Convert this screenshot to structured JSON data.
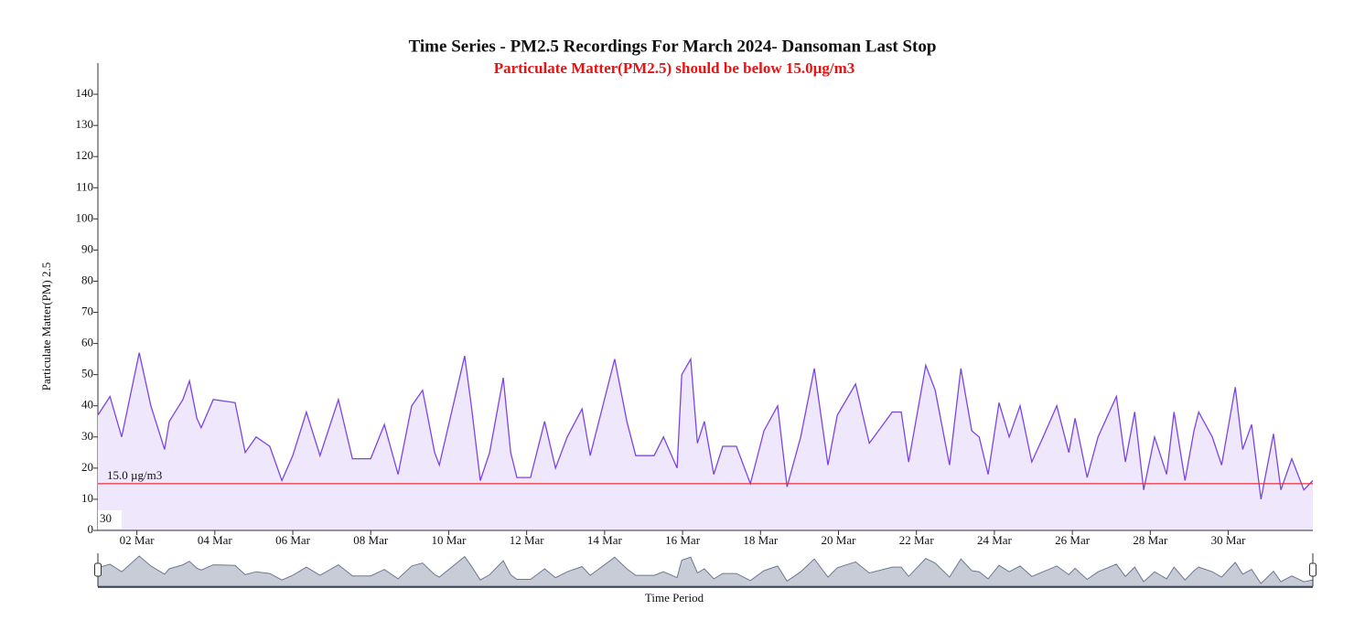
{
  "chart_data": {
    "type": "area",
    "title": "Time Series - PM2.5 Recordings For March 2024- Dansoman Last Stop",
    "subtitle": "Particulate Matter(PM2.5) should be below 15.0µg/m3",
    "y_label": "Particulate Matter(PM) 2.5",
    "x_label": "Time Period",
    "annotation": "30",
    "threshold": {
      "value": 15,
      "label": "15.0 µg/m3",
      "color": "#e8303c"
    },
    "xlim": [
      1,
      32.17
    ],
    "ylim": [
      0,
      150
    ],
    "yticks": [
      0,
      10,
      20,
      30,
      40,
      50,
      60,
      70,
      80,
      90,
      100,
      110,
      120,
      130,
      140
    ],
    "xticks": [
      {
        "value": 2,
        "label": "02 Mar"
      },
      {
        "value": 4,
        "label": "04 Mar"
      },
      {
        "value": 6,
        "label": "06 Mar"
      },
      {
        "value": 8,
        "label": "08 Mar"
      },
      {
        "value": 10,
        "label": "10 Mar"
      },
      {
        "value": 12,
        "label": "12 Mar"
      },
      {
        "value": 14,
        "label": "14 Mar"
      },
      {
        "value": 16,
        "label": "16 Mar"
      },
      {
        "value": 18,
        "label": "18 Mar"
      },
      {
        "value": 20,
        "label": "20 Mar"
      },
      {
        "value": 22,
        "label": "22 Mar"
      },
      {
        "value": 24,
        "label": "24 Mar"
      },
      {
        "value": 26,
        "label": "26 Mar"
      },
      {
        "value": 28,
        "label": "28 Mar"
      },
      {
        "value": 30,
        "label": "30 Mar"
      }
    ],
    "x": [
      1.0,
      1.31,
      1.61,
      2.06,
      2.36,
      2.71,
      2.83,
      3.18,
      3.35,
      3.54,
      3.65,
      3.96,
      4.52,
      4.78,
      5.06,
      5.41,
      5.72,
      6.0,
      6.35,
      6.7,
      7.17,
      7.53,
      8.0,
      8.35,
      8.7,
      9.05,
      9.33,
      9.64,
      9.76,
      10.41,
      10.58,
      10.81,
      11.05,
      11.4,
      11.59,
      11.75,
      12.1,
      12.46,
      12.74,
      13.04,
      13.42,
      13.63,
      14.26,
      14.57,
      14.8,
      15.27,
      15.51,
      15.86,
      15.98,
      16.21,
      16.38,
      16.56,
      16.8,
      17.03,
      17.38,
      17.74,
      18.09,
      18.44,
      18.68,
      19.03,
      19.38,
      19.73,
      19.97,
      20.44,
      20.79,
      21.38,
      21.61,
      21.8,
      22.24,
      22.48,
      22.85,
      23.14,
      23.42,
      23.61,
      23.84,
      24.12,
      24.38,
      24.66,
      24.96,
      25.25,
      25.6,
      25.91,
      26.07,
      26.38,
      26.66,
      27.13,
      27.36,
      27.6,
      27.83,
      28.11,
      28.42,
      28.61,
      28.89,
      29.12,
      29.24,
      29.59,
      29.83,
      30.18,
      30.37,
      30.6,
      30.84,
      31.16,
      31.35,
      31.63,
      31.94,
      32.17
    ],
    "series": [
      {
        "color": "#7b45e6",
        "fill": "#efe7fc",
        "values": [
          37,
          43,
          30,
          57,
          40,
          26,
          35,
          42,
          48,
          36,
          33,
          42,
          41,
          25,
          30,
          27,
          16,
          24,
          38,
          24,
          42,
          23,
          23,
          34,
          18,
          40,
          45,
          25,
          21,
          56,
          40,
          16,
          25,
          49,
          25,
          17,
          17,
          35,
          20,
          30,
          39,
          24,
          55,
          35,
          24,
          24,
          30,
          20,
          50,
          55,
          28,
          35,
          18,
          27,
          27,
          15,
          32,
          40,
          14,
          30,
          52,
          21,
          37,
          47,
          28,
          38,
          38,
          22,
          53,
          45,
          21,
          52,
          32,
          30,
          18,
          41,
          30,
          40,
          22,
          30,
          40,
          25,
          36,
          17,
          30,
          43,
          22,
          38,
          13,
          30,
          18,
          38,
          16,
          32,
          38,
          30,
          21,
          46,
          26,
          34,
          10,
          31,
          13,
          23,
          13,
          16
        ]
      }
    ]
  }
}
